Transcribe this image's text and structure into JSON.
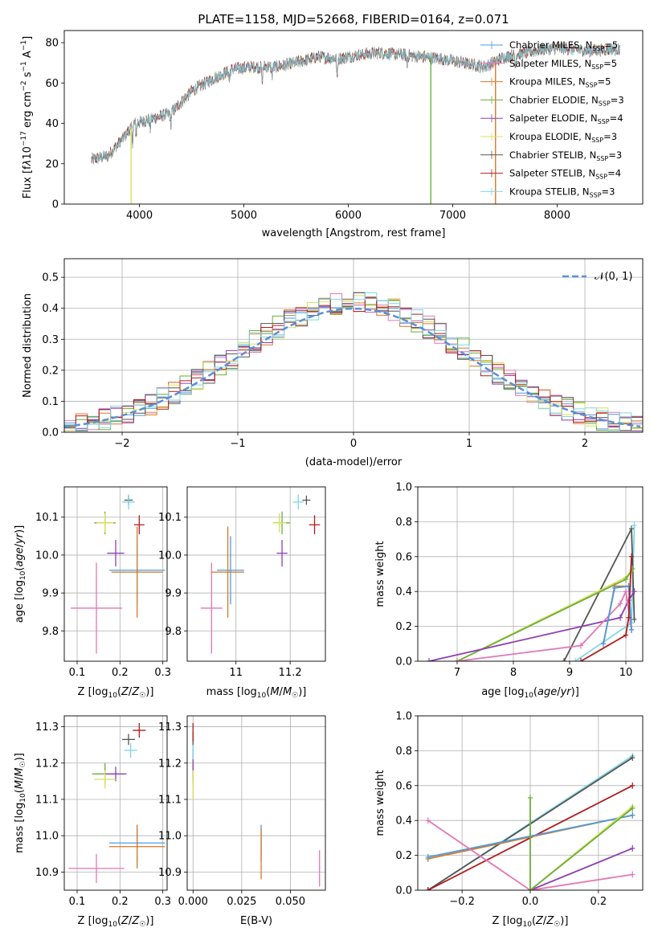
{
  "title": "PLATE=1158, MJD=52668, FIBERID=0164, z=0.071",
  "models": [
    {
      "name": "Chabrier MILES, N_SSP=5",
      "label_main": "Chabrier MILES, N",
      "label_sub": "SSP",
      "label_tail": "=5",
      "color": "#4c9be0"
    },
    {
      "name": "Salpeter MILES, N_SSP=5",
      "label_main": "Salpeter MILES, N",
      "label_sub": "SSP",
      "label_tail": "=5",
      "color": "#e377b5"
    },
    {
      "name": "Kroupa MILES, N_SSP=5",
      "label_main": "Kroupa MILES, N",
      "label_sub": "SSP",
      "label_tail": "=5",
      "color": "#d6792a"
    },
    {
      "name": "Chabrier ELODIE, N_SSP=3",
      "label_main": "Chabrier ELODIE, N",
      "label_sub": "SSP",
      "label_tail": "=3",
      "color": "#6aae3a"
    },
    {
      "name": "Salpeter ELODIE, N_SSP=4",
      "label_main": "Salpeter ELODIE, N",
      "label_sub": "SSP",
      "label_tail": "=4",
      "color": "#8e3fb0"
    },
    {
      "name": "Kroupa ELODIE, N_SSP=3",
      "label_main": "Kroupa ELODIE, N",
      "label_sub": "SSP",
      "label_tail": "=3",
      "color": "#d8e05a"
    },
    {
      "name": "Chabrier STELIB, N_SSP=3",
      "label_main": "Chabrier STELIB, N",
      "label_sub": "SSP",
      "label_tail": "=3",
      "color": "#555555"
    },
    {
      "name": "Salpeter STELIB, N_SSP=4",
      "label_main": "Salpeter STELIB, N",
      "label_sub": "SSP",
      "label_tail": "=4",
      "color": "#b01c1c"
    },
    {
      "name": "Kroupa STELIB, N_SSP=3",
      "label_main": "Kroupa STELIB, N",
      "label_sub": "SSP",
      "label_tail": "=3",
      "color": "#7fd6e6"
    }
  ],
  "chart_data": [
    {
      "id": "spectrum",
      "type": "line",
      "xlabel": "wavelength [Angstrom, rest frame]",
      "ylabel": "Flux [f_λ 10^-17 erg cm^-2 s^-1 A^-1]",
      "xlim": [
        3280,
        8820
      ],
      "ylim": [
        0,
        86
      ],
      "xticks": [
        4000,
        5000,
        6000,
        7000,
        8000
      ],
      "yticks": [
        0,
        20,
        40,
        60,
        80
      ],
      "legend": "top-right",
      "grid": false,
      "trend": [
        [
          3540,
          22
        ],
        [
          3700,
          24
        ],
        [
          3850,
          33
        ],
        [
          3950,
          40
        ],
        [
          4100,
          42
        ],
        [
          4300,
          45
        ],
        [
          4500,
          56
        ],
        [
          4700,
          62
        ],
        [
          4900,
          67
        ],
        [
          5100,
          68
        ],
        [
          5300,
          68
        ],
        [
          5500,
          70
        ],
        [
          5700,
          73
        ],
        [
          5900,
          72
        ],
        [
          6100,
          74
        ],
        [
          6300,
          75
        ],
        [
          6500,
          74
        ],
        [
          6700,
          73
        ],
        [
          6900,
          72
        ],
        [
          7100,
          70
        ],
        [
          7300,
          68
        ],
        [
          7500,
          73
        ],
        [
          7700,
          75
        ],
        [
          7900,
          77
        ],
        [
          8100,
          77
        ],
        [
          8300,
          76
        ],
        [
          8600,
          77
        ]
      ],
      "masked_drops": [
        3920,
        6790,
        7410
      ]
    },
    {
      "id": "residuals",
      "type": "step",
      "xlabel": "(data-model)/error",
      "ylabel": "Normed distribution",
      "xlim": [
        -2.5,
        2.5
      ],
      "ylim": [
        0,
        0.56
      ],
      "xticks": [
        -2,
        -1,
        0,
        1,
        2
      ],
      "yticks": [
        0.0,
        0.1,
        0.2,
        0.3,
        0.4,
        0.5
      ],
      "grid": true,
      "legend": "top-right",
      "reference_label": "N(0,1)"
    },
    {
      "id": "age-vs-Z",
      "type": "scatter",
      "xlabel": "Z [log10(Z/Z☉)]",
      "ylabel": "age [log10(age/yr)]",
      "xlim": [
        0.07,
        0.31
      ],
      "ylim": [
        9.72,
        10.18
      ],
      "xticks": [
        0.1,
        0.2,
        0.3
      ],
      "yticks": [
        9.8,
        9.9,
        10.0,
        10.1
      ],
      "grid": true,
      "points": [
        {
          "model": 0,
          "x": 0.24,
          "y": 9.96,
          "xerr": 0.065,
          "yerr": 0.09
        },
        {
          "model": 1,
          "x": 0.145,
          "y": 9.86,
          "xerr": 0.06,
          "yerr": 0.12
        },
        {
          "model": 2,
          "x": 0.24,
          "y": 9.955,
          "xerr": 0.06,
          "yerr": 0.12
        },
        {
          "model": 3,
          "x": 0.165,
          "y": 10.085,
          "xerr": 0.025,
          "yerr": 0.03
        },
        {
          "model": 4,
          "x": 0.19,
          "y": 10.005,
          "xerr": 0.02,
          "yerr": 0.035
        },
        {
          "model": 5,
          "x": 0.165,
          "y": 10.085,
          "xerr": 0.02,
          "yerr": 0.025
        },
        {
          "model": 6,
          "x": 0.22,
          "y": 10.145,
          "xerr": 0.01,
          "yerr": 0.012
        },
        {
          "model": 7,
          "x": 0.245,
          "y": 10.08,
          "xerr": 0.012,
          "yerr": 0.025
        },
        {
          "model": 8,
          "x": 0.22,
          "y": 10.14,
          "xerr": 0.015,
          "yerr": 0.02
        }
      ]
    },
    {
      "id": "age-vs-mass",
      "type": "scatter",
      "xlabel": "mass [log10(M/M☉)]",
      "ylabel": "",
      "xlim": [
        10.82,
        11.33
      ],
      "ylim": [
        9.72,
        10.18
      ],
      "xticks": [
        11.0,
        11.2
      ],
      "yticks": [
        9.8,
        9.9,
        10.0,
        10.1
      ],
      "grid": true,
      "points": [
        {
          "model": 0,
          "x": 10.98,
          "y": 9.96,
          "xerr": 0.05,
          "yerr": 0.09
        },
        {
          "model": 1,
          "x": 10.91,
          "y": 9.86,
          "xerr": 0.04,
          "yerr": 0.12
        },
        {
          "model": 2,
          "x": 10.97,
          "y": 9.955,
          "xerr": 0.06,
          "yerr": 0.12
        },
        {
          "model": 3,
          "x": 11.17,
          "y": 10.085,
          "xerr": 0.03,
          "yerr": 0.03
        },
        {
          "model": 4,
          "x": 11.17,
          "y": 10.005,
          "xerr": 0.02,
          "yerr": 0.035
        },
        {
          "model": 5,
          "x": 11.16,
          "y": 10.085,
          "xerr": 0.025,
          "yerr": 0.025
        },
        {
          "model": 6,
          "x": 11.26,
          "y": 10.145,
          "xerr": 0.015,
          "yerr": 0.012
        },
        {
          "model": 7,
          "x": 11.29,
          "y": 10.08,
          "xerr": 0.02,
          "yerr": 0.025
        },
        {
          "model": 8,
          "x": 11.23,
          "y": 10.14,
          "xerr": 0.02,
          "yerr": 0.02
        }
      ]
    },
    {
      "id": "weight-vs-age",
      "type": "line",
      "xlabel": "age [log10(age/yr)]",
      "ylabel": "mass weight",
      "xlim": [
        6.3,
        10.3
      ],
      "ylim": [
        0,
        1.0
      ],
      "xticks": [
        7,
        8,
        9,
        10
      ],
      "yticks": [
        0.0,
        0.2,
        0.4,
        0.6,
        0.8,
        1.0
      ],
      "grid": true,
      "series": [
        {
          "model": 8,
          "points": [
            [
              9.1,
              0.0
            ],
            [
              10.1,
              0.22
            ],
            [
              10.15,
              0.78
            ]
          ]
        },
        {
          "model": 6,
          "points": [
            [
              8.9,
              0.0
            ],
            [
              10.1,
              0.76
            ],
            [
              10.15,
              0.24
            ]
          ]
        },
        {
          "model": 5,
          "points": [
            [
              7.0,
              0.0
            ],
            [
              10.0,
              0.48
            ],
            [
              10.1,
              0.52
            ]
          ]
        },
        {
          "model": 3,
          "points": [
            [
              7.0,
              0.0
            ],
            [
              10.0,
              0.47
            ],
            [
              10.12,
              0.53
            ]
          ]
        },
        {
          "model": 4,
          "points": [
            [
              6.5,
              0.0
            ],
            [
              9.9,
              0.25
            ],
            [
              10.05,
              0.35
            ],
            [
              10.15,
              0.4
            ]
          ]
        },
        {
          "model": 1,
          "points": [
            [
              7.0,
              0.0
            ],
            [
              9.2,
              0.09
            ],
            [
              9.9,
              0.33
            ],
            [
              10.0,
              0.4
            ],
            [
              10.1,
              0.18
            ]
          ]
        },
        {
          "model": 2,
          "points": [
            [
              9.6,
              0.1
            ],
            [
              9.8,
              0.43
            ],
            [
              10.05,
              0.43
            ],
            [
              10.1,
              0.18
            ]
          ]
        },
        {
          "model": 0,
          "points": [
            [
              9.6,
              0.1
            ],
            [
              9.8,
              0.42
            ],
            [
              10.05,
              0.43
            ],
            [
              10.1,
              0.18
            ]
          ]
        },
        {
          "model": 7,
          "points": [
            [
              9.2,
              0.0
            ],
            [
              10.0,
              0.15
            ],
            [
              10.05,
              0.25
            ],
            [
              10.1,
              0.6
            ]
          ]
        }
      ]
    },
    {
      "id": "mass-vs-Z",
      "type": "scatter",
      "xlabel": "Z [log10(Z/Z☉)]",
      "ylabel": "mass [log10(M/M☉)]",
      "xlim": [
        0.07,
        0.31
      ],
      "ylim": [
        10.85,
        11.33
      ],
      "xticks": [
        0.1,
        0.2,
        0.3
      ],
      "yticks": [
        10.9,
        11.0,
        11.1,
        11.2,
        11.3
      ],
      "grid": true,
      "points": [
        {
          "model": 0,
          "x": 0.24,
          "y": 10.98,
          "xerr": 0.065,
          "yerr": 0.05
        },
        {
          "model": 1,
          "x": 0.145,
          "y": 10.91,
          "xerr": 0.065,
          "yerr": 0.04
        },
        {
          "model": 2,
          "x": 0.24,
          "y": 10.97,
          "xerr": 0.065,
          "yerr": 0.06
        },
        {
          "model": 3,
          "x": 0.165,
          "y": 11.17,
          "xerr": 0.03,
          "yerr": 0.03
        },
        {
          "model": 4,
          "x": 0.19,
          "y": 11.17,
          "xerr": 0.025,
          "yerr": 0.02
        },
        {
          "model": 5,
          "x": 0.165,
          "y": 11.155,
          "xerr": 0.025,
          "yerr": 0.025
        },
        {
          "model": 6,
          "x": 0.22,
          "y": 11.265,
          "xerr": 0.015,
          "yerr": 0.015
        },
        {
          "model": 7,
          "x": 0.245,
          "y": 11.29,
          "xerr": 0.015,
          "yerr": 0.02
        },
        {
          "model": 8,
          "x": 0.225,
          "y": 11.235,
          "xerr": 0.015,
          "yerr": 0.02
        }
      ]
    },
    {
      "id": "mass-vs-EBV",
      "type": "scatter",
      "xlabel": "E(B-V)",
      "ylabel": "",
      "xlim": [
        -0.003,
        0.068
      ],
      "ylim": [
        10.85,
        11.33
      ],
      "xticks": [
        0.0,
        0.025,
        0.05
      ],
      "xtick_labels": [
        "0.000",
        "0.025",
        "0.050"
      ],
      "yticks": [
        10.9,
        11.0,
        11.1,
        11.2,
        11.3
      ],
      "grid": true,
      "points": [
        {
          "model": 0,
          "x": 0.035,
          "y": 10.98,
          "xerr": 0.0005,
          "yerr": 0.05
        },
        {
          "model": 1,
          "x": 0.065,
          "y": 10.91,
          "xerr": 0.0005,
          "yerr": 0.05
        },
        {
          "model": 2,
          "x": 0.035,
          "y": 10.95,
          "xerr": 0.0005,
          "yerr": 0.07
        },
        {
          "model": 3,
          "x": 0.0,
          "y": 11.17,
          "xerr": 0.0005,
          "yerr": 0.03
        },
        {
          "model": 4,
          "x": 0.0,
          "y": 11.2,
          "xerr": 0.0005,
          "yerr": 0.04
        },
        {
          "model": 5,
          "x": 0.0,
          "y": 11.14,
          "xerr": 0.0005,
          "yerr": 0.04
        },
        {
          "model": 6,
          "x": 0.0,
          "y": 11.265,
          "xerr": 0.0005,
          "yerr": 0.02
        },
        {
          "model": 7,
          "x": 0.0,
          "y": 11.285,
          "xerr": 0.0005,
          "yerr": 0.025
        },
        {
          "model": 8,
          "x": 0.0,
          "y": 11.23,
          "xerr": 0.0005,
          "yerr": 0.02
        }
      ]
    },
    {
      "id": "weight-vs-Z",
      "type": "line",
      "xlabel": "Z [log10(Z/Z☉)]",
      "ylabel": "mass weight",
      "xlim": [
        -0.33,
        0.33
      ],
      "ylim": [
        0,
        1.0
      ],
      "xticks": [
        -0.2,
        0.0,
        0.2
      ],
      "xtick_labels": [
        "−0.2",
        "0.0",
        "0.2"
      ],
      "yticks": [
        0.0,
        0.2,
        0.4,
        0.6,
        0.8,
        1.0
      ],
      "grid": true,
      "series": [
        {
          "model": 8,
          "points": [
            [
              -0.3,
              0.0
            ],
            [
              0.3,
              0.77
            ]
          ]
        },
        {
          "model": 6,
          "points": [
            [
              -0.3,
              0.0
            ],
            [
              0.3,
              0.76
            ]
          ]
        },
        {
          "model": 7,
          "points": [
            [
              -0.3,
              0.0
            ],
            [
              0.3,
              0.6
            ]
          ]
        },
        {
          "model": 2,
          "points": [
            [
              -0.3,
              0.18
            ],
            [
              0.3,
              0.43
            ]
          ]
        },
        {
          "model": 0,
          "points": [
            [
              -0.3,
              0.19
            ],
            [
              0.3,
              0.43
            ]
          ]
        },
        {
          "model": 1,
          "points": [
            [
              -0.3,
              0.4
            ],
            [
              0.0,
              0.0
            ],
            [
              0.3,
              0.09
            ]
          ]
        },
        {
          "model": 4,
          "points": [
            [
              0.0,
              0.0
            ],
            [
              0.3,
              0.24
            ]
          ]
        },
        {
          "model": 5,
          "points": [
            [
              0.0,
              0.0
            ],
            [
              0.3,
              0.48
            ]
          ]
        },
        {
          "model": 3,
          "points": [
            [
              0.0,
              0.53
            ],
            [
              0.0,
              0.0
            ],
            [
              0.3,
              0.47
            ]
          ]
        }
      ]
    }
  ]
}
